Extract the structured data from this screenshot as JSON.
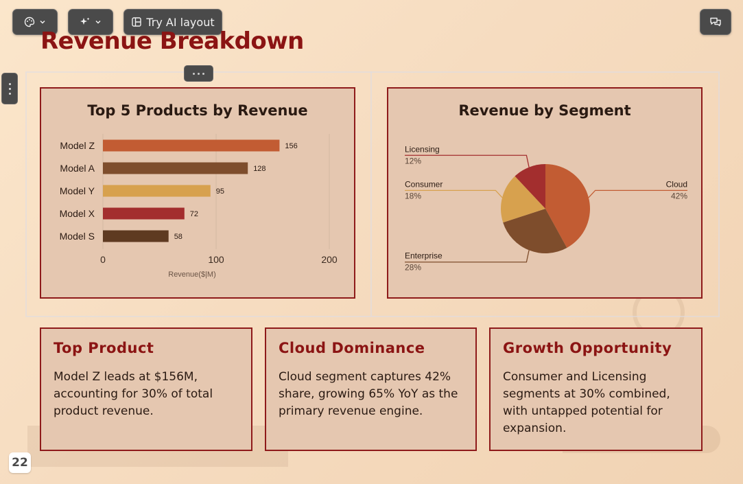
{
  "toolbar": {
    "theme_icon": "palette-icon",
    "ai_icon": "sparkle-icon",
    "ai_layout_label": "Try AI layout",
    "comment_icon": "comments-icon"
  },
  "slide": {
    "title": "Revenue Breakdown",
    "page_number": "22"
  },
  "colors": {
    "title": "#8b1413",
    "card_bg": "#e5c7b0",
    "card_border": "#8e1a1a"
  },
  "chart_data": [
    {
      "type": "bar",
      "orientation": "horizontal",
      "title": "Top 5 Products by Revenue",
      "categories": [
        "Model Z",
        "Model A",
        "Model Y",
        "Model X",
        "Model S"
      ],
      "values": [
        156,
        128,
        95,
        72,
        58
      ],
      "colors": [
        "#c25c33",
        "#7e4d2c",
        "#d7a14e",
        "#a32e2e",
        "#5e3a21"
      ],
      "xlabel": "Revenue($|M)",
      "xlim": [
        0,
        200
      ],
      "xticks": [
        0,
        100,
        200
      ],
      "grid": true
    },
    {
      "type": "pie",
      "title": "Revenue by Segment",
      "slices": [
        {
          "label": "Cloud",
          "value": 42,
          "pct": "42%",
          "color": "#c25c33"
        },
        {
          "label": "Enterprise",
          "value": 28,
          "pct": "28%",
          "color": "#7e4d2c"
        },
        {
          "label": "Consumer",
          "value": 18,
          "pct": "18%",
          "color": "#d7a14e"
        },
        {
          "label": "Licensing",
          "value": 12,
          "pct": "12%",
          "color": "#a32e2e"
        }
      ]
    }
  ],
  "insights": [
    {
      "title": "Top Product",
      "body": "Model Z leads at $156M, accounting for 30% of total product revenue."
    },
    {
      "title": "Cloud Dominance",
      "body": "Cloud segment captures 42% share, growing 65% YoY as the primary revenue engine."
    },
    {
      "title": "Growth Opportunity",
      "body": "Consumer and Licensing segments at 30% combined, with untapped potential for expansion."
    }
  ]
}
